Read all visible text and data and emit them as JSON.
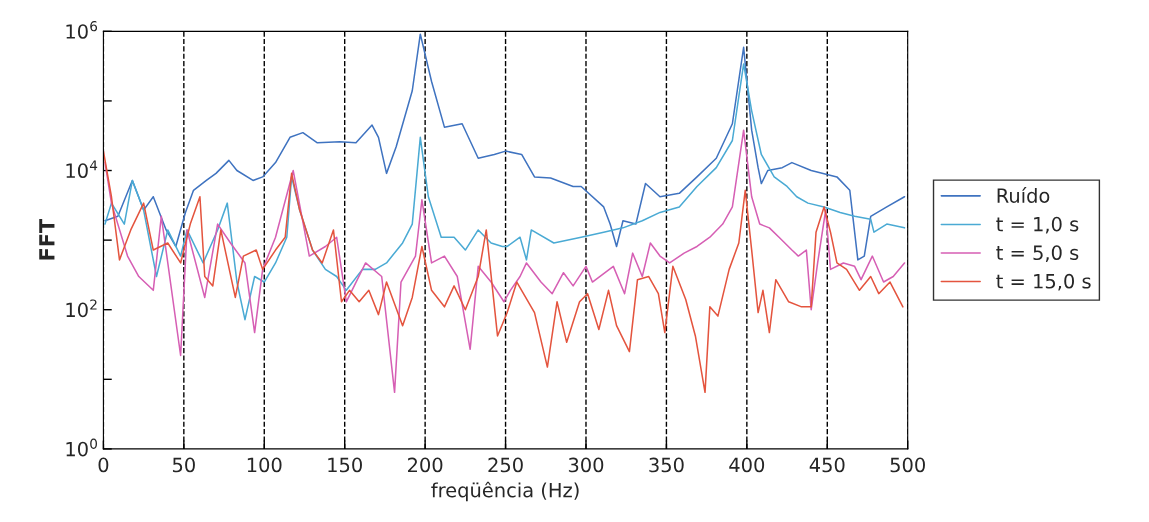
{
  "chart_data": {
    "type": "line",
    "xlabel": "freqüência (Hz)",
    "ylabel": "FFT",
    "log": "y",
    "grid": "x",
    "legend": "right",
    "line_style": "solid",
    "marker": "none",
    "xlim": [
      0,
      500
    ],
    "xticks": [
      0,
      50,
      100,
      150,
      200,
      250,
      300,
      350,
      400,
      450,
      500
    ],
    "ylim": [
      1,
      1000000
    ],
    "yticks": [
      {
        "value": 1,
        "label": "10$^{0}$"
      },
      {
        "value": 10,
        "label": null
      },
      {
        "value": 100,
        "label": "10$^{2}$"
      },
      {
        "value": 1000,
        "label": null
      },
      {
        "value": 10000,
        "label": "10$^{4}$"
      },
      {
        "value": 100000,
        "label": null
      },
      {
        "value": 1000000,
        "label": "10$^{6}$"
      }
    ],
    "series": [
      {
        "name": "Ruído",
        "color": "#3f73c0",
        "x": [
          1,
          9,
          18,
          25,
          31,
          39,
          45,
          51,
          56,
          64,
          70,
          78,
          83,
          93,
          99,
          107,
          116,
          124,
          133,
          147,
          157,
          167,
          171,
          176,
          182,
          192,
          197,
          204,
          212,
          223,
          233,
          243,
          250,
          260,
          268,
          278,
          292,
          297,
          311,
          315,
          319,
          323,
          331,
          337,
          346,
          358,
          369,
          381,
          391,
          398,
          403,
          407,
          409,
          413,
          422,
          428,
          440,
          456,
          464,
          469,
          473,
          477,
          487,
          498
        ],
        "values": [
          1900.0,
          2200.0,
          7200.0,
          2700.0,
          4200.0,
          1400.0,
          810.0,
          2500.0,
          5200.0,
          7200.0,
          9100.0,
          14000.0,
          10000.0,
          7200.0,
          8100.0,
          13000.0,
          30000.0,
          35000.0,
          25000.0,
          26000.0,
          25000.0,
          45000.0,
          30000.0,
          9100.0,
          22000.0,
          140000.0,
          910000.0,
          190000.0,
          42000.0,
          47000.0,
          15000.0,
          17000.0,
          19000.0,
          17000.0,
          8100.0,
          7800.0,
          5900.0,
          5900.0,
          3000.0,
          1700.0,
          810.0,
          1900.0,
          1700.0,
          6500.0,
          4200.0,
          4700.0,
          8100.0,
          15000.0,
          47000.0,
          590000.0,
          38000.0,
          11000.0,
          6500.0,
          10000.0,
          11000.0,
          13000.0,
          10000.0,
          8100.0,
          5200.0,
          520.0,
          590.0,
          2200.0,
          3000.0,
          4200.0
        ]
      },
      {
        "name": "t = 1,0 s",
        "color": "#4aaad4",
        "x": [
          1,
          5,
          13,
          18,
          25,
          33,
          40,
          48,
          52,
          62,
          71,
          77,
          83,
          88,
          94,
          100,
          107,
          114,
          117,
          122,
          130,
          138,
          145,
          151,
          161,
          169,
          176,
          186,
          192,
          197,
          202,
          210,
          218,
          225,
          233,
          241,
          248,
          251,
          259,
          263,
          266,
          280,
          297,
          311,
          323,
          335,
          346,
          358,
          369,
          381,
          391,
          398,
          403,
          409,
          417,
          425,
          431,
          438,
          448,
          458,
          467,
          477,
          479,
          487,
          498
        ],
        "values": [
          1700.0,
          3400.0,
          1700.0,
          7200.0,
          2700.0,
          300.0,
          1400.0,
          590.0,
          1400.0,
          470.0,
          1400.0,
          3400.0,
          250.0,
          72,
          300.0,
          250.0,
          470.0,
          1100.0,
          8100.0,
          2700.0,
          720.0,
          380.0,
          300.0,
          190.0,
          380.0,
          380.0,
          470.0,
          910.0,
          1700.0,
          30000.0,
          4200.0,
          1100.0,
          1100.0,
          720.0,
          1400.0,
          910.0,
          810.0,
          810.0,
          1100.0,
          520.0,
          1400.0,
          910.0,
          1100.0,
          1300.0,
          1500.0,
          1900.0,
          2500.0,
          3000.0,
          5900.0,
          11000.0,
          27000.0,
          340000.0,
          72000.0,
          17000.0,
          8100.0,
          5900.0,
          4200.0,
          3400.0,
          3000.0,
          2500.0,
          2200.0,
          2000.0,
          1300.0,
          1700.0,
          1500.0
        ]
      },
      {
        "name": "t = 5,0 s",
        "color": "#d65fb4",
        "x": [
          1,
          5,
          15,
          22,
          31,
          36,
          48,
          52,
          63,
          71,
          79,
          88,
          94,
          99,
          107,
          118,
          128,
          138,
          145,
          151,
          163,
          173,
          181,
          185,
          194,
          198,
          204,
          212,
          220,
          228,
          233,
          241,
          249,
          253,
          259,
          263,
          272,
          279,
          286,
          292,
          300,
          304,
          317,
          324,
          329,
          335,
          340,
          346,
          352,
          361,
          369,
          377,
          385,
          391,
          398,
          403,
          408,
          414,
          420,
          428,
          432,
          437,
          440,
          444,
          449,
          452,
          460,
          467,
          471,
          478,
          485,
          491,
          498
        ],
        "values": [
          13000.0,
          3400.0,
          590.0,
          300.0,
          190.0,
          2200.0,
          22,
          1400.0,
          150.0,
          1700.0,
          910.0,
          470.0,
          47,
          380.0,
          1100.0,
          10000.0,
          590.0,
          810.0,
          1100.0,
          130.0,
          470.0,
          300.0,
          6.5,
          250.0,
          590.0,
          3800.0,
          470.0,
          590.0,
          300.0,
          27,
          420.0,
          250.0,
          130.0,
          190.0,
          300.0,
          470.0,
          250.0,
          170.0,
          340.0,
          220.0,
          420.0,
          250.0,
          420.0,
          170.0,
          650.0,
          300.0,
          910.0,
          590.0,
          470.0,
          650.0,
          810.0,
          1100.0,
          1700.0,
          3000.0,
          38000.0,
          4200.0,
          1700.0,
          1500.0,
          1100.0,
          720.0,
          590.0,
          720.0,
          100.0,
          470.0,
          2700.0,
          380.0,
          470.0,
          420.0,
          270.0,
          590.0,
          250.0,
          300.0,
          470.0
        ]
      },
      {
        "name": "t = 15,0 s",
        "color": "#e4543e",
        "x": [
          0,
          5,
          10,
          17,
          25,
          31,
          40,
          48,
          54,
          60,
          63,
          68,
          73,
          82,
          87,
          95,
          99,
          107,
          113,
          117,
          122,
          130,
          136,
          143,
          148,
          153,
          159,
          165,
          171,
          176,
          186,
          192,
          198,
          204,
          212,
          218,
          225,
          233,
          238,
          245,
          251,
          257,
          268,
          276,
          282,
          288,
          296,
          301,
          308,
          314,
          319,
          327,
          332,
          339,
          345,
          349,
          354,
          362,
          368,
          374,
          377,
          382,
          389,
          395,
          399,
          403,
          407,
          410,
          414,
          418,
          426,
          434,
          440,
          443,
          448,
          452,
          456,
          462,
          470,
          477,
          482,
          489,
          497
        ],
        "values": [
          19000.0,
          4200.0,
          520.0,
          1400.0,
          3400.0,
          720.0,
          910.0,
          470.0,
          1700.0,
          4200.0,
          300.0,
          220.0,
          1400.0,
          150.0,
          590.0,
          720.0,
          380.0,
          720.0,
          1100.0,
          9100.0,
          2700.0,
          720.0,
          470.0,
          1400.0,
          130.0,
          190.0,
          130.0,
          190.0,
          85,
          250.0,
          59,
          150.0,
          810.0,
          190.0,
          110.0,
          220.0,
          100.0,
          300.0,
          1400.0,
          42,
          91,
          250.0,
          91,
          15,
          130.0,
          34,
          130.0,
          170.0,
          52,
          190.0,
          59,
          25,
          270.0,
          300.0,
          170.0,
          47,
          420.0,
          140.0,
          42,
          6.5,
          110.0,
          81,
          380.0,
          910.0,
          5200.0,
          720.0,
          91,
          190.0,
          47,
          270.0,
          130.0,
          110.0,
          110.0,
          1300.0,
          3000.0,
          1300.0,
          470.0,
          380.0,
          190.0,
          300.0,
          170.0,
          250.0,
          110.0
        ]
      }
    ]
  }
}
